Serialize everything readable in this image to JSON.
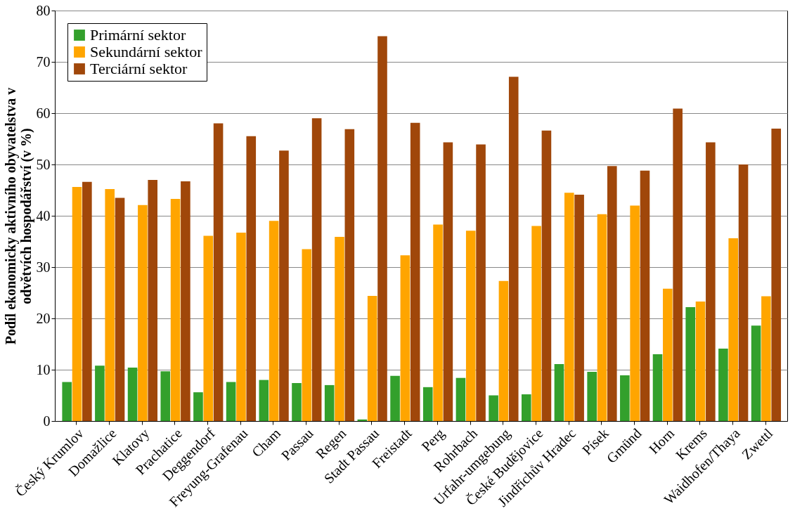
{
  "chart_data": {
    "type": "bar",
    "ylabel": [
      "Podíl ekonomicky aktivního obyvatelstva v",
      "odvětvích hospodářství (v %)"
    ],
    "categories": [
      "Český Krumlov",
      "Domažlice",
      "Klatovy",
      "Prachatice",
      "Deggendorf",
      "Freyung-Grafenau",
      "Cham",
      "Passau",
      "Regen",
      "Stadt Passau",
      "Freistadt",
      "Perg",
      "Rohrbach",
      "Urfahr-umgebung",
      "České Budějovice",
      "Jindřichův Hradec",
      "Písek",
      "Gmünd",
      "Horn",
      "Krems",
      "Waidhofen/Thaya",
      "Zwettl"
    ],
    "series": [
      {
        "name": "Primární sektor",
        "color": "#33a02c",
        "values": [
          7.6,
          10.8,
          10.4,
          9.7,
          5.6,
          7.6,
          8.0,
          7.4,
          7.0,
          0.3,
          8.8,
          6.6,
          8.4,
          5.0,
          5.2,
          11.1,
          9.6,
          8.9,
          13.0,
          22.2,
          14.1,
          18.6
        ]
      },
      {
        "name": "Sekundární sektor",
        "color": "#ffa500",
        "values": [
          45.6,
          45.2,
          42.1,
          43.3,
          36.1,
          36.7,
          39.0,
          33.5,
          35.9,
          24.4,
          32.3,
          38.3,
          37.1,
          27.3,
          38.0,
          44.5,
          40.3,
          42.0,
          25.8,
          23.3,
          35.6,
          24.3
        ]
      },
      {
        "name": "Terciární sektor",
        "color": "#a0470a",
        "values": [
          46.6,
          43.5,
          47.0,
          46.7,
          58.0,
          55.5,
          52.7,
          59.0,
          56.9,
          75.0,
          58.1,
          54.3,
          53.9,
          67.1,
          56.6,
          44.1,
          49.7,
          48.8,
          60.9,
          54.3,
          50.0,
          57.0
        ]
      }
    ],
    "ylim": [
      0,
      80
    ],
    "yticks": [
      0,
      10,
      20,
      30,
      40,
      50,
      60,
      70,
      80
    ],
    "grid": "y",
    "legend": "top left"
  }
}
